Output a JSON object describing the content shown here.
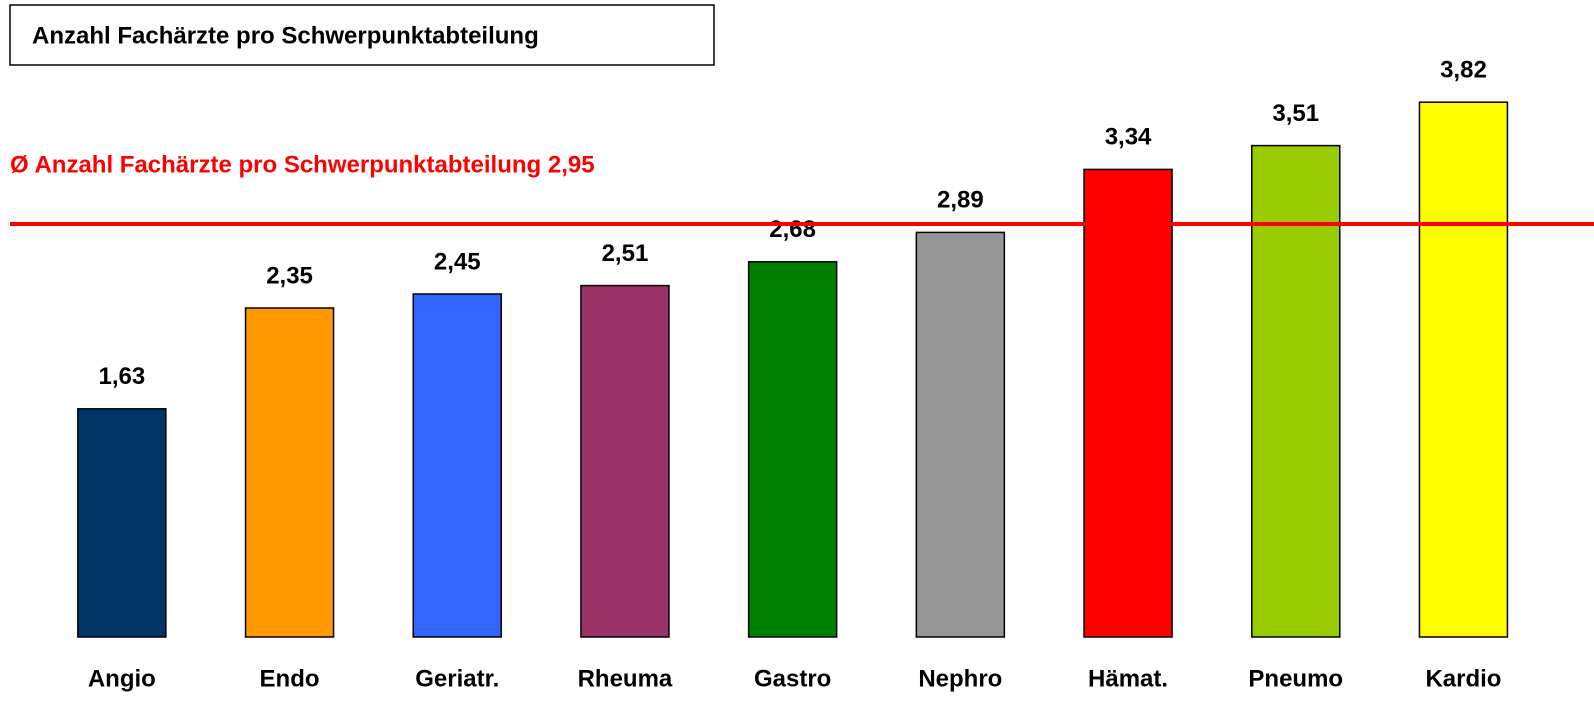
{
  "chart_data": {
    "type": "bar",
    "title": "Anzahl Fachärzte pro Schwerpunktabteilung",
    "categories": [
      "Angio",
      "Endo",
      "Geriatr.",
      "Rheuma",
      "Gastro",
      "Nephro",
      "Hämat.",
      "Pneumo",
      "Kardio"
    ],
    "values": [
      1.63,
      2.35,
      2.45,
      2.51,
      2.68,
      2.89,
      3.34,
      3.51,
      3.82
    ],
    "value_labels": [
      "1,63",
      "2,35",
      "2,45",
      "2,51",
      "2,68",
      "2,89",
      "3,34",
      "3,51",
      "3,82"
    ],
    "colors": [
      "#003366",
      "#ff9900",
      "#3366ff",
      "#993366",
      "#008000",
      "#969696",
      "#ff0000",
      "#99cc00",
      "#ffff00"
    ],
    "average": 2.95,
    "average_label": "Ø Anzahl Fachärzte pro Schwerpunktabteilung 2,95",
    "average_color": "#ff0000",
    "ylim": [
      0,
      4.55
    ]
  }
}
